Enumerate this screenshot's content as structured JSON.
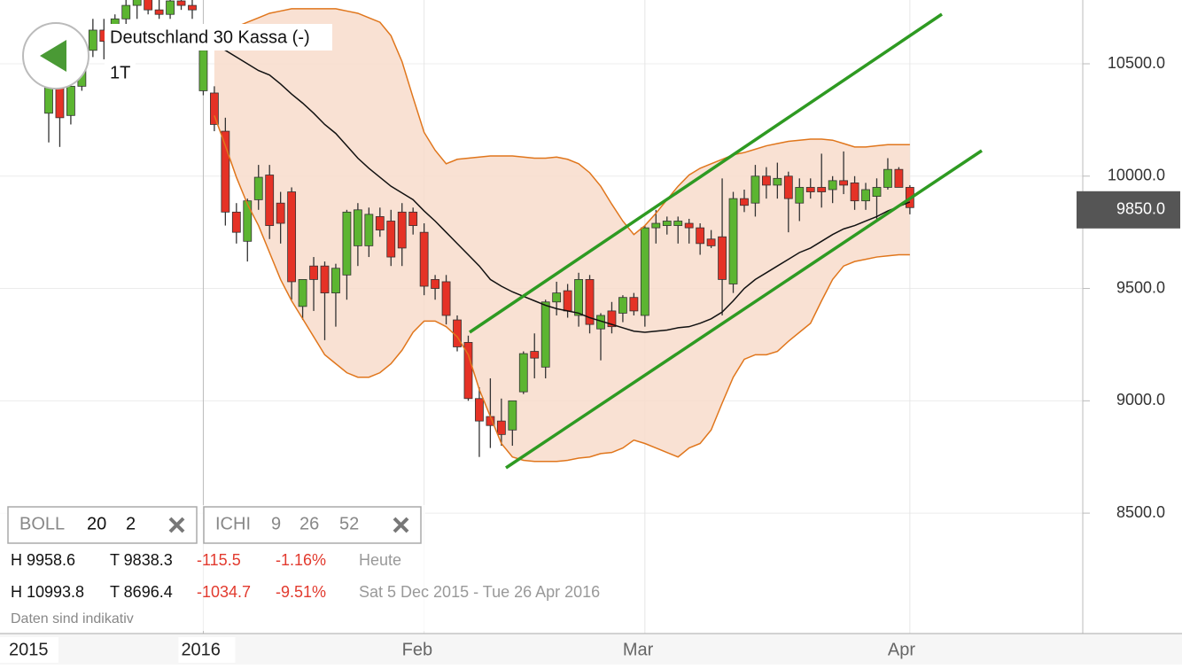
{
  "chart_data": {
    "type": "candlestick",
    "title": "Deutschland 30 Kassa (-)",
    "subtitle": "1T",
    "categories": [
      null,
      null,
      null,
      null,
      null,
      null,
      null,
      null,
      null,
      null,
      null,
      null,
      null,
      null,
      "2016",
      null,
      null,
      null,
      null,
      null,
      null,
      null,
      null,
      null,
      null,
      null,
      null,
      null,
      null,
      null,
      null,
      null,
      null,
      null,
      "Feb",
      null,
      null,
      null,
      null,
      null,
      null,
      null,
      null,
      null,
      null,
      null,
      null,
      null,
      null,
      null,
      null,
      null,
      null,
      null,
      "Mar",
      null,
      null,
      null,
      null,
      null,
      null,
      null,
      null,
      null,
      null,
      null,
      null,
      null,
      null,
      null,
      null,
      null,
      null,
      null,
      null,
      null,
      null,
      null,
      "Apr"
    ],
    "open": [
      10280,
      10400,
      10270,
      10400,
      10560,
      10650,
      10600,
      10700,
      10760,
      10800,
      10740,
      10720,
      10780,
      10760,
      10380,
      10370,
      10200,
      9840,
      9710,
      9895,
      10005,
      9880,
      9930,
      9420,
      9600,
      9600,
      9480,
      9560,
      9690,
      9690,
      9820,
      9800,
      9840,
      9840,
      9750,
      9540,
      9530,
      9360,
      9260,
      9010,
      8930,
      8910,
      8870,
      9040,
      9220,
      9150,
      9440,
      9490,
      9380,
      9540,
      9320,
      9400,
      9390,
      9460,
      9380,
      9770,
      9780,
      9780,
      9790,
      9770,
      9720,
      9730,
      9520,
      9900,
      9880,
      10000,
      9960,
      10000,
      9880,
      9950,
      9950,
      9940,
      9980,
      9970,
      9890,
      9910,
      9950,
      10030,
      9950
    ],
    "high": [
      10450,
      10480,
      10430,
      10600,
      10700,
      10700,
      10720,
      10800,
      10850,
      10850,
      10790,
      10800,
      10850,
      10800,
      10620,
      10400,
      10260,
      9880,
      9900,
      10050,
      10050,
      9930,
      9950,
      9540,
      9640,
      9620,
      9610,
      9850,
      9880,
      9860,
      9860,
      9850,
      9880,
      9860,
      9790,
      9560,
      9560,
      9380,
      9290,
      9060,
      9100,
      9010,
      9000,
      9220,
      9300,
      9450,
      9530,
      9520,
      9570,
      9560,
      9390,
      9440,
      9470,
      9480,
      9780,
      9850,
      9820,
      9820,
      9810,
      9790,
      9760,
      9990,
      9930,
      9940,
      10050,
      10040,
      10060,
      10020,
      9990,
      9990,
      10100,
      10000,
      10110,
      10000,
      9970,
      9990,
      10080,
      10040,
      9960
    ],
    "low": [
      10150,
      10130,
      10230,
      10380,
      10530,
      10520,
      10560,
      10660,
      10700,
      10720,
      10700,
      10700,
      10740,
      10700,
      10360,
      10200,
      9780,
      9700,
      9620,
      9850,
      9720,
      9700,
      9450,
      9360,
      9400,
      9270,
      9330,
      9450,
      9600,
      9640,
      9730,
      9600,
      9600,
      9740,
      9470,
      9450,
      9340,
      9220,
      9000,
      8750,
      8790,
      8800,
      8800,
      9030,
      9100,
      9100,
      9380,
      9370,
      9330,
      9300,
      9180,
      9300,
      9350,
      9380,
      9330,
      9700,
      9740,
      9700,
      9700,
      9650,
      9680,
      9380,
      9480,
      9840,
      9820,
      9900,
      9900,
      9750,
      9800,
      9900,
      9860,
      9880,
      9920,
      9850,
      9850,
      9800,
      9940,
      9950,
      9830
    ],
    "close": [
      10420,
      10260,
      10400,
      10560,
      10650,
      10600,
      10700,
      10760,
      10800,
      10740,
      10720,
      10780,
      10760,
      10740,
      10560,
      10230,
      9840,
      9750,
      9890,
      9995,
      9780,
      9790,
      9530,
      9540,
      9540,
      9480,
      9590,
      9840,
      9850,
      9830,
      9760,
      9640,
      9680,
      9780,
      9510,
      9500,
      9380,
      9240,
      9010,
      8910,
      8890,
      8850,
      9000,
      9210,
      9190,
      9440,
      9480,
      9400,
      9540,
      9340,
      9380,
      9330,
      9460,
      9400,
      9770,
      9790,
      9800,
      9800,
      9770,
      9700,
      9690,
      9540,
      9900,
      9870,
      10000,
      9960,
      9990,
      9900,
      9950,
      9930,
      9930,
      9980,
      9960,
      9890,
      9940,
      9950,
      10030,
      9950,
      9860
    ],
    "up_color": "#5cb531",
    "down_color": "#e53226",
    "overlays": [
      {
        "color": "#e0761c",
        "values": [
          null,
          null,
          null,
          null,
          null,
          null,
          null,
          null,
          null,
          null,
          null,
          null,
          null,
          null,
          null,
          10625,
          10645,
          10665,
          10685,
          10705,
          10725,
          10735,
          10745,
          10745,
          10745,
          10745,
          10745,
          10735,
          10725,
          10705,
          10685,
          10625,
          10510,
          10350,
          10195,
          10115,
          10055,
          10075,
          10080,
          10085,
          10090,
          10090,
          10090,
          10085,
          10080,
          10080,
          10085,
          10075,
          10055,
          10015,
          9955,
          9875,
          9800,
          9740,
          9780,
          9835,
          9895,
          9955,
          10005,
          10035,
          10055,
          10075,
          10095,
          10105,
          10120,
          10135,
          10145,
          10155,
          10160,
          10165,
          10165,
          10160,
          10145,
          10130,
          10130,
          10135,
          10140,
          10140,
          10140
        ]
      },
      {
        "color": "#e0761c",
        "values": [
          null,
          null,
          null,
          null,
          null,
          null,
          null,
          null,
          null,
          null,
          null,
          null,
          null,
          null,
          null,
          10270,
          10135,
          9995,
          9875,
          9780,
          9660,
          9540,
          9445,
          9365,
          9285,
          9205,
          9165,
          9125,
          9105,
          9105,
          9125,
          9165,
          9225,
          9305,
          9355,
          9355,
          9330,
          9285,
          9205,
          9050,
          8930,
          8810,
          8750,
          8735,
          8730,
          8730,
          8730,
          8735,
          8745,
          8750,
          8765,
          8770,
          8790,
          8825,
          8810,
          8790,
          8770,
          8750,
          8790,
          8810,
          8870,
          8990,
          9105,
          9185,
          9205,
          9205,
          9220,
          9265,
          9305,
          9345,
          9445,
          9540,
          9600,
          9620,
          9630,
          9640,
          9645,
          9650,
          9650
        ]
      },
      {
        "color": "#111111",
        "values": [
          null,
          null,
          null,
          null,
          null,
          null,
          null,
          null,
          null,
          null,
          null,
          null,
          null,
          null,
          null,
          10585,
          10560,
          10530,
          10500,
          10470,
          10450,
          10410,
          10365,
          10325,
          10280,
          10230,
          10190,
          10135,
          10080,
          10035,
          9995,
          9955,
          9925,
          9895,
          9845,
          9800,
          9750,
          9700,
          9650,
          9600,
          9540,
          9510,
          9485,
          9465,
          9445,
          9425,
          9410,
          9400,
          9390,
          9370,
          9355,
          9340,
          9325,
          9310,
          9305,
          9310,
          9315,
          9325,
          9330,
          9345,
          9365,
          9395,
          9445,
          9500,
          9540,
          9570,
          9600,
          9630,
          9660,
          9680,
          9710,
          9740,
          9765,
          9780,
          9800,
          9820,
          9845,
          9865,
          9885
        ]
      }
    ],
    "band_fill": "#f8dccb",
    "ylim": [
      7964,
      10784
    ],
    "yticks": [
      {
        "value": 8500,
        "label": "8500.0"
      },
      {
        "value": 9000,
        "label": "9000.0"
      },
      {
        "value": 9500,
        "label": "9500.0"
      },
      {
        "value": 10000,
        "label": "10000.0"
      },
      {
        "value": 10500,
        "label": "10500.0"
      }
    ],
    "current_price": {
      "value": 9850,
      "label": "9850.0"
    },
    "grid": true
  },
  "ui": {
    "x_left_label": "2015",
    "indicators": [
      [
        "BOLL",
        "20",
        "2"
      ],
      [
        "ICHI",
        "9",
        "26",
        "52"
      ]
    ],
    "stats": [
      [
        "H 9958.6",
        "T 9838.3",
        "-115.5",
        "-1.16%",
        "Heute"
      ],
      [
        "H 10993.8",
        "T 8696.4",
        "-1034.7",
        "-9.51%",
        "Sat 5 Dec 2015 - Tue 26 Apr 2016"
      ]
    ],
    "note": "Daten sind indikativ"
  }
}
